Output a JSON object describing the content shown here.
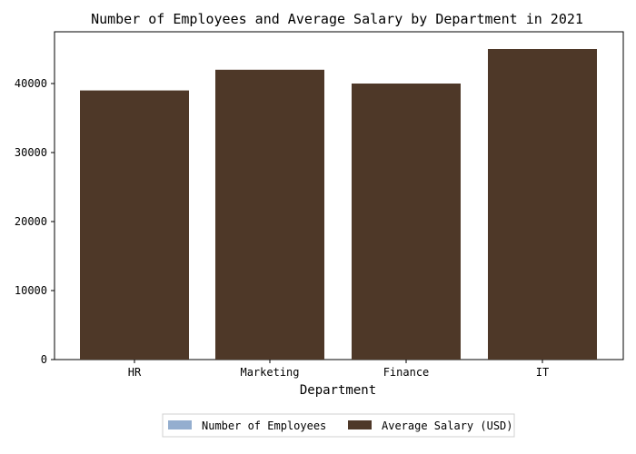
{
  "chart_data": {
    "type": "bar",
    "title": "Number of Employees and Average Salary by Department in 2021",
    "xlabel": "Department",
    "ylabel": "",
    "categories": [
      "HR",
      "Marketing",
      "Finance",
      "IT"
    ],
    "series": [
      {
        "name": "Number of Employees",
        "values": [
          10,
          15,
          12,
          20
        ],
        "color": "#94aecf"
      },
      {
        "name": "Average Salary (USD)",
        "values": [
          39000,
          42000,
          40000,
          45000
        ],
        "color": "#4e3828"
      }
    ],
    "ylim": [
      0,
      47500
    ],
    "yticks": [
      0,
      10000,
      20000,
      30000,
      40000
    ],
    "grid": false,
    "legend": "bottom-center"
  }
}
